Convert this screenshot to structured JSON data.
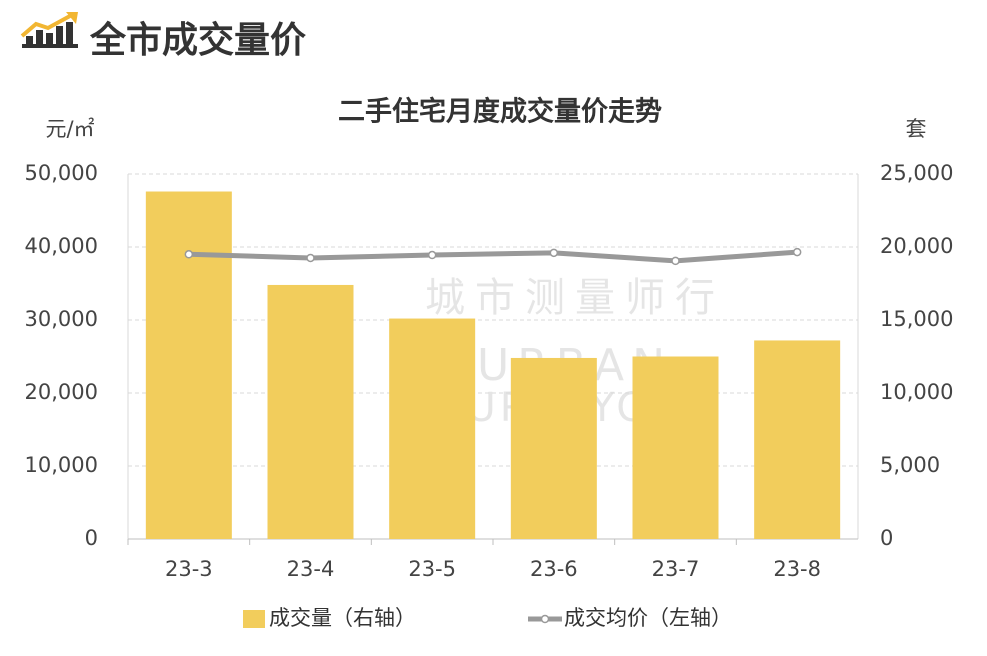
{
  "header": {
    "title": "全市成交量价"
  },
  "chart_data": {
    "type": "combo",
    "title": "二手住宅月度成交量价走势",
    "y_label": "元/㎡",
    "y2_label": "套",
    "watermark": [
      "城市测量师行",
      "URBAN",
      "SURVEYORS"
    ],
    "categories": [
      "23-3",
      "23-4",
      "23-5",
      "23-6",
      "23-7",
      "23-8"
    ],
    "series": [
      {
        "name": "成交量（右轴）",
        "type": "bar",
        "axis": "y2",
        "color": "#F2CD5C",
        "values": [
          23800,
          17400,
          15100,
          12400,
          12500,
          13600
        ]
      },
      {
        "name": "成交均价（左轴）",
        "type": "line",
        "axis": "y",
        "color": "#999999",
        "values": [
          39000,
          38500,
          38900,
          39200,
          38100,
          39300
        ]
      }
    ],
    "ylim": [
      0,
      50000
    ],
    "yticks": [
      0,
      {
        "value": 10000,
        "label": "10,000"
      },
      {
        "value": 20000,
        "label": "20,000"
      },
      {
        "value": 30000,
        "label": "30,000"
      },
      {
        "value": 40000,
        "label": "40,000"
      },
      {
        "value": 50000,
        "label": "50,000"
      }
    ],
    "y2lim": [
      0,
      25000
    ],
    "y2ticks": [
      0,
      {
        "value": 5000,
        "label": "5,000"
      },
      {
        "value": 10000,
        "label": "10,000"
      },
      {
        "value": 15000,
        "label": "15,000"
      },
      {
        "value": 20000,
        "label": "20,000"
      },
      {
        "value": 25000,
        "label": "25,000"
      }
    ],
    "grid": true,
    "legend": "bottom"
  }
}
